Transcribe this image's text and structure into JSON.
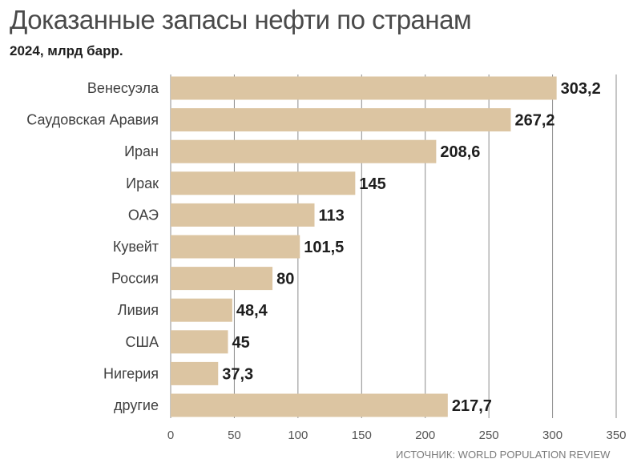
{
  "header": {
    "title": "Доказанные запасы нефти по странам",
    "subtitle": "2024, млрд барр."
  },
  "footer": {
    "source": "ИСТОЧНИК: WORLD POPULATION REVIEW"
  },
  "colors": {
    "bar": "#dcc5a2",
    "grid": "#8c8c8c",
    "text": "#2b2b2b",
    "label": "#3f3f3f"
  },
  "chart_data": {
    "type": "bar",
    "orientation": "horizontal",
    "title": "Доказанные запасы нефти по странам",
    "subtitle": "2024, млрд барр.",
    "categories": [
      "Венесуэла",
      "Саудовская Аравия",
      "Иран",
      "Ирак",
      "ОАЭ",
      "Кувейт",
      "Россия",
      "Ливия",
      "США",
      "Нигерия",
      "другие"
    ],
    "values": [
      303.2,
      267.2,
      208.6,
      145,
      113,
      101.5,
      80,
      48.4,
      45,
      37.3,
      217.7
    ],
    "value_labels": [
      "303,2",
      "267,2",
      "208,6",
      "145",
      "113",
      "101,5",
      "80",
      "48,4",
      "45",
      "37,3",
      "217,7"
    ],
    "xlim": [
      0,
      350
    ],
    "xticks": [
      0,
      50,
      100,
      150,
      200,
      250,
      300,
      350
    ],
    "xtick_labels": [
      "0",
      "50",
      "100",
      "150",
      "200",
      "250",
      "300",
      "350"
    ],
    "grid": true,
    "legend": "none"
  }
}
